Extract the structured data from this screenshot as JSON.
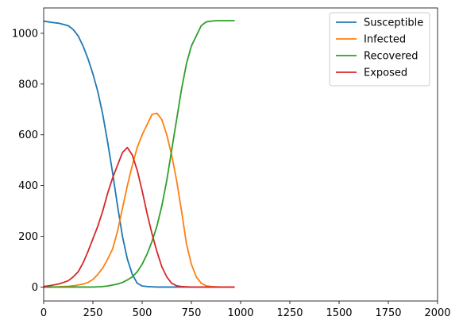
{
  "chart_data": {
    "type": "line",
    "title": "",
    "xlabel": "",
    "ylabel": "",
    "xlim": [
      0,
      2000
    ],
    "ylim": [
      -55,
      1100
    ],
    "xticks": [
      0,
      250,
      500,
      750,
      1000,
      1250,
      1500,
      1750,
      2000
    ],
    "yticks": [
      0,
      200,
      400,
      600,
      800,
      1000
    ],
    "grid": false,
    "legend_position": "top-right",
    "series": [
      {
        "name": "Susceptible",
        "color": "#1f77b4",
        "x": [
          0,
          25,
          50,
          75,
          100,
          125,
          150,
          175,
          200,
          225,
          250,
          275,
          300,
          325,
          350,
          375,
          400,
          425,
          450,
          475,
          500,
          525,
          550,
          575,
          600,
          625,
          650,
          675,
          700,
          725,
          750,
          775,
          800,
          825,
          850,
          875,
          900,
          925,
          950,
          970
        ],
        "y": [
          1048,
          1045,
          1042,
          1040,
          1035,
          1030,
          1015,
          990,
          950,
          900,
          840,
          770,
          680,
          570,
          450,
          320,
          200,
          110,
          50,
          15,
          4,
          2,
          1,
          0,
          0,
          0,
          0,
          0,
          0,
          0,
          0,
          0,
          0,
          0,
          0,
          0,
          0,
          0,
          0,
          0
        ]
      },
      {
        "name": "Infected",
        "color": "#ff7f0e",
        "x": [
          0,
          25,
          50,
          75,
          100,
          125,
          150,
          175,
          200,
          225,
          250,
          275,
          300,
          325,
          350,
          375,
          400,
          425,
          450,
          475,
          500,
          525,
          550,
          575,
          600,
          625,
          650,
          675,
          700,
          725,
          750,
          775,
          800,
          825,
          850,
          875,
          900,
          925,
          950,
          970
        ],
        "y": [
          0,
          0,
          0,
          1,
          2,
          3,
          5,
          8,
          12,
          18,
          30,
          50,
          75,
          110,
          150,
          220,
          310,
          400,
          480,
          550,
          600,
          640,
          680,
          685,
          660,
          600,
          520,
          420,
          300,
          170,
          90,
          40,
          15,
          5,
          2,
          1,
          0,
          0,
          0,
          0
        ]
      },
      {
        "name": "Recovered",
        "color": "#2ca02c",
        "x": [
          0,
          25,
          50,
          75,
          100,
          125,
          150,
          175,
          200,
          225,
          250,
          275,
          300,
          325,
          350,
          375,
          400,
          425,
          450,
          475,
          500,
          525,
          550,
          575,
          600,
          625,
          650,
          675,
          700,
          725,
          750,
          775,
          800,
          825,
          850,
          875,
          900,
          925,
          950,
          970
        ],
        "y": [
          0,
          0,
          0,
          0,
          0,
          0,
          0,
          0,
          0,
          0,
          0,
          1,
          2,
          4,
          8,
          12,
          18,
          28,
          40,
          60,
          90,
          130,
          180,
          240,
          320,
          420,
          540,
          660,
          780,
          880,
          950,
          990,
          1030,
          1045,
          1048,
          1050,
          1050,
          1050,
          1050,
          1050
        ]
      },
      {
        "name": "Exposed",
        "color": "#d62728",
        "x": [
          0,
          25,
          50,
          75,
          100,
          125,
          150,
          175,
          200,
          225,
          250,
          275,
          300,
          325,
          350,
          375,
          400,
          425,
          450,
          475,
          500,
          525,
          550,
          575,
          600,
          625,
          650,
          675,
          700,
          725,
          750,
          775,
          800,
          825,
          850,
          875,
          900,
          925,
          950,
          970
        ],
        "y": [
          2,
          5,
          8,
          12,
          18,
          25,
          40,
          60,
          95,
          140,
          190,
          240,
          300,
          370,
          430,
          480,
          530,
          550,
          520,
          460,
          380,
          290,
          210,
          140,
          80,
          40,
          15,
          5,
          2,
          1,
          0,
          0,
          0,
          0,
          0,
          0,
          0,
          0,
          0,
          0
        ]
      }
    ]
  }
}
